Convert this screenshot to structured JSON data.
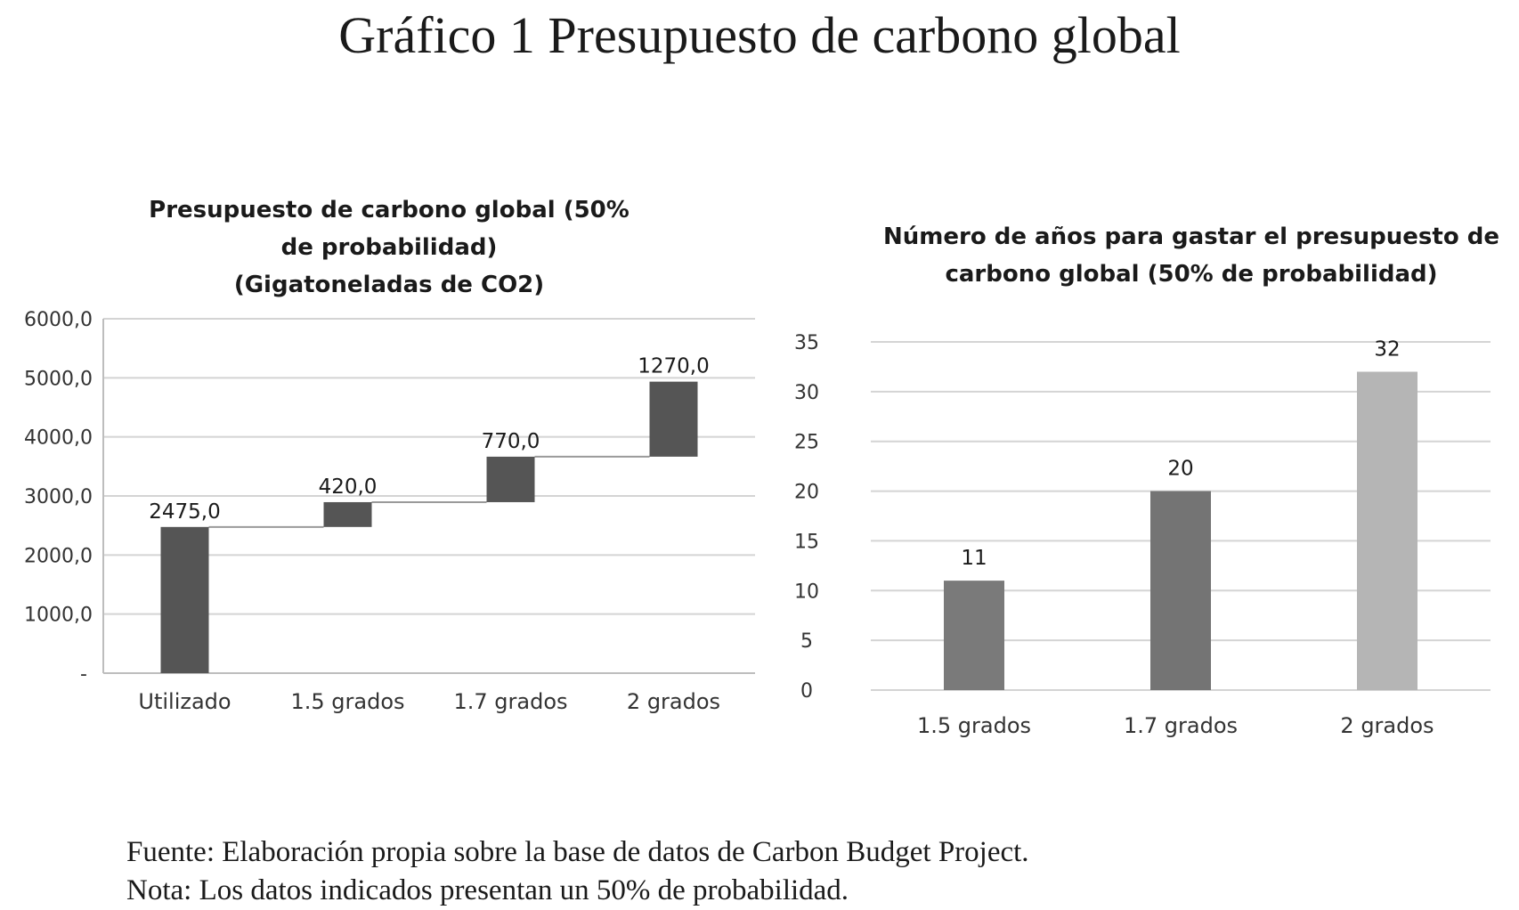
{
  "title": "Gráfico 1 Presupuesto de carbono global",
  "footnotes": {
    "source": "Fuente: Elaboración propia sobre la base de datos de Carbon Budget Project.",
    "note": "Nota: Los datos indicados presentan un 50% de probabilidad."
  },
  "chart_data": [
    {
      "type": "bar",
      "subtype": "waterfall",
      "title_lines": [
        "Presupuesto de carbono  global (50%",
        "de probabilidad)",
        "(Gigatoneladas de CO2)"
      ],
      "categories": [
        "Utilizado",
        "1.5 grados",
        "1.7 grados",
        "2 grados"
      ],
      "values": [
        2475.0,
        420.0,
        770.0,
        1270.0
      ],
      "data_labels": [
        "2475,0",
        "420,0",
        "770,0",
        "1270,0"
      ],
      "base": [
        0,
        2475.0,
        2895.0,
        3665.0
      ],
      "ylim": [
        0,
        6000
      ],
      "yticks": [
        0,
        1000,
        2000,
        3000,
        4000,
        5000,
        6000
      ],
      "ytick_labels": [
        "-",
        "1000,0",
        "2000,0",
        "3000,0",
        "4000,0",
        "5000,0",
        "6000,0"
      ],
      "grid": true,
      "colors": {
        "bar": "#555555",
        "grid": "#d4d4d4",
        "connector": "#9a9a9a"
      }
    },
    {
      "type": "bar",
      "title_lines": [
        "Número de años para gastar el presupuesto de",
        "carbono global (50% de probabilidad)"
      ],
      "categories": [
        "1.5 grados",
        "1.7 grados",
        "2 grados"
      ],
      "values": [
        11,
        20,
        32
      ],
      "data_labels": [
        "11",
        "20",
        "32"
      ],
      "ylim": [
        0,
        35
      ],
      "yticks": [
        0,
        5,
        10,
        15,
        20,
        25,
        30,
        35
      ],
      "ytick_labels": [
        "0",
        "5",
        "10",
        "15",
        "20",
        "25",
        "30",
        "35"
      ],
      "grid": true,
      "colors": {
        "bars": [
          "#7a7a7a",
          "#747474",
          "#b5b5b5"
        ],
        "grid": "#d4d4d4"
      }
    }
  ]
}
